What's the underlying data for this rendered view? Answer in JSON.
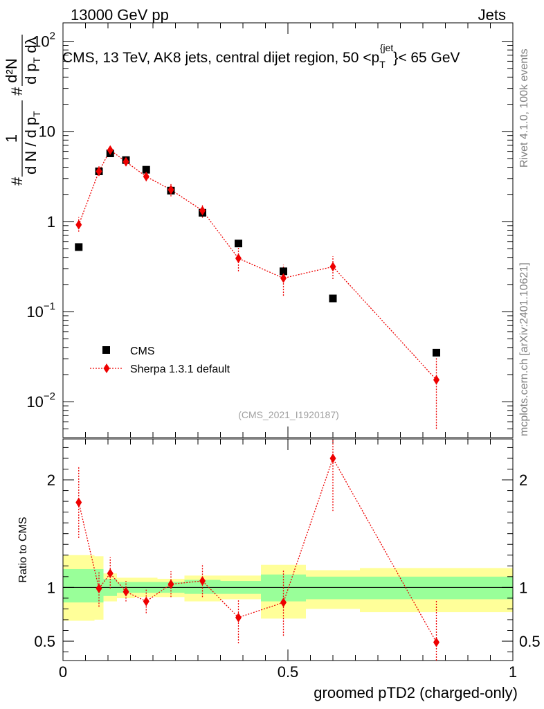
{
  "chart_data": {
    "type": "scatter",
    "header": {
      "left": "13000 GeV pp",
      "right": "Jets"
    },
    "title": "CMS, 13 TeV, AK8 jets, central dijet region, 50 <p_T^{jet}< 65 GeV",
    "title_parts": {
      "main": "CMS, 13 TeV, AK8 jets, central dijet region, 50 <p",
      "sub": "T",
      "sup": "{jet",
      "tail": "}< 65 GeV"
    },
    "side_labels": {
      "top": "Rivet 4.1.0,  100k events",
      "bottom": "mcplots.cern.ch [arXiv:2401.10621]"
    },
    "watermark": "(CMS_2021_I1920187)",
    "xlabel": "groomed pTD2 (charged-only)",
    "xlim": [
      0,
      1
    ],
    "xticks": [
      {
        "v": 0,
        "label": "0"
      },
      {
        "v": 0.5,
        "label": "0.5"
      },
      {
        "v": 1,
        "label": "1"
      }
    ],
    "upper": {
      "yscale": "log",
      "ylim": [
        0.004,
        160
      ],
      "ylabel": {
        "frac_num": "1",
        "frac_den": "d N / d p",
        "den_sub": "T",
        "num": "d²N",
        "num_den": "d p",
        "num_den_sub": "T",
        "num_den_tail": " dλ",
        "hash": "#"
      },
      "yticks": [
        {
          "v": 0.01,
          "base": "10",
          "exp": "−2"
        },
        {
          "v": 0.1,
          "base": "10",
          "exp": "−1"
        },
        {
          "v": 1,
          "base": "1",
          "exp": ""
        },
        {
          "v": 10,
          "base": "10",
          "exp": ""
        },
        {
          "v": 100,
          "base": "10",
          "exp": "2"
        }
      ]
    },
    "lower": {
      "ylabel": "Ratio to CMS",
      "ylim": [
        0.32,
        2.38
      ],
      "yticks": [
        {
          "v": 0.5,
          "label": "0.5"
        },
        {
          "v": 1,
          "label": "1"
        },
        {
          "v": 2,
          "label": "2"
        }
      ]
    },
    "colors": {
      "data": "#000000",
      "mc": "#ee0000",
      "band_inner": "#99ff99",
      "band_outer": "#ffff99"
    },
    "legend": {
      "position": "lower-left",
      "entries": [
        "CMS",
        "Sherpa 1.3.1 default"
      ]
    },
    "series": [
      {
        "name": "CMS",
        "x": [
          0.035,
          0.08,
          0.105,
          0.14,
          0.185,
          0.24,
          0.31,
          0.39,
          0.49,
          0.6,
          0.83
        ],
        "y": [
          0.52,
          3.6,
          5.7,
          4.8,
          3.75,
          2.2,
          1.25,
          0.57,
          0.28,
          0.14,
          0.035
        ]
      },
      {
        "name": "Sherpa 1.3.1 default",
        "x": [
          0.035,
          0.08,
          0.105,
          0.14,
          0.185,
          0.24,
          0.31,
          0.39,
          0.49,
          0.6,
          0.83
        ],
        "y": [
          0.92,
          3.6,
          6.2,
          4.6,
          3.15,
          2.25,
          1.32,
          0.39,
          0.235,
          0.315,
          0.0175
        ],
        "yerr_lo": [
          0.77,
          3.2,
          5.6,
          4.1,
          2.8,
          1.9,
          1.1,
          0.28,
          0.15,
          0.23,
          0.005
        ],
        "yerr_hi": [
          1.12,
          4.2,
          6.8,
          5.3,
          3.6,
          2.6,
          1.55,
          0.51,
          0.33,
          0.41,
          0.031
        ]
      }
    ],
    "ratio": {
      "x": [
        0.035,
        0.08,
        0.105,
        0.14,
        0.185,
        0.24,
        0.31,
        0.39,
        0.49,
        0.6,
        0.83
      ],
      "y": [
        1.79,
        0.99,
        1.13,
        0.96,
        0.87,
        1.03,
        1.06,
        0.72,
        0.86,
        2.2,
        0.49
      ],
      "y_lo": [
        1.46,
        0.82,
        0.99,
        0.87,
        0.76,
        0.91,
        0.91,
        0.48,
        0.55,
        1.71,
        0.32
      ],
      "y_hi": [
        2.12,
        1.14,
        1.28,
        1.06,
        0.99,
        1.15,
        1.22,
        0.89,
        1.16,
        2.38,
        0.88
      ]
    },
    "bands": [
      {
        "x0": 0.0,
        "x1": 0.07,
        "in_lo": 0.86,
        "in_hi": 1.17,
        "out_lo": 0.69,
        "out_hi": 1.3
      },
      {
        "x0": 0.07,
        "x1": 0.09,
        "in_lo": 0.86,
        "in_hi": 1.17,
        "out_lo": 0.7,
        "out_hi": 1.29
      },
      {
        "x0": 0.09,
        "x1": 0.12,
        "in_lo": 0.92,
        "in_hi": 1.08,
        "out_lo": 0.87,
        "out_hi": 1.13
      },
      {
        "x0": 0.12,
        "x1": 0.16,
        "in_lo": 0.95,
        "in_hi": 1.05,
        "out_lo": 0.9,
        "out_hi": 1.09
      },
      {
        "x0": 0.16,
        "x1": 0.21,
        "in_lo": 0.95,
        "in_hi": 1.05,
        "out_lo": 0.91,
        "out_hi": 1.09
      },
      {
        "x0": 0.21,
        "x1": 0.27,
        "in_lo": 0.95,
        "in_hi": 1.05,
        "out_lo": 0.91,
        "out_hi": 1.08
      },
      {
        "x0": 0.27,
        "x1": 0.35,
        "in_lo": 0.94,
        "in_hi": 1.07,
        "out_lo": 0.87,
        "out_hi": 1.11
      },
      {
        "x0": 0.35,
        "x1": 0.44,
        "in_lo": 0.94,
        "in_hi": 1.06,
        "out_lo": 0.89,
        "out_hi": 1.11
      },
      {
        "x0": 0.44,
        "x1": 0.54,
        "in_lo": 0.87,
        "in_hi": 1.12,
        "out_lo": 0.71,
        "out_hi": 1.21
      },
      {
        "x0": 0.54,
        "x1": 0.66,
        "in_lo": 0.89,
        "in_hi": 1.1,
        "out_lo": 0.8,
        "out_hi": 1.16
      },
      {
        "x0": 0.66,
        "x1": 1.0,
        "in_lo": 0.89,
        "in_hi": 1.1,
        "out_lo": 0.77,
        "out_hi": 1.18
      }
    ]
  }
}
